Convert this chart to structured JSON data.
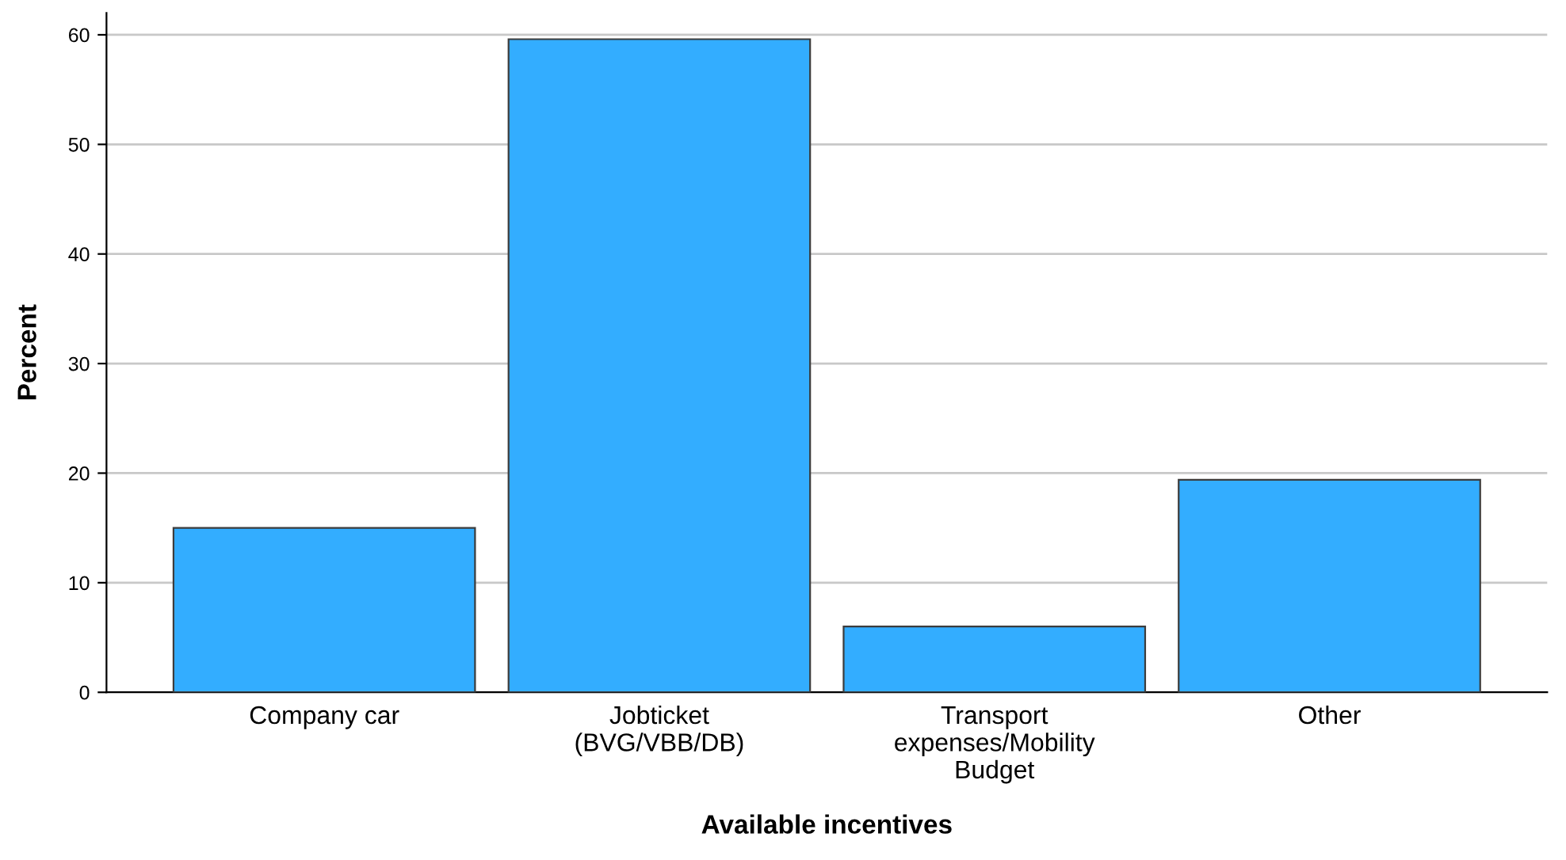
{
  "chart_data": {
    "type": "bar",
    "xlabel": "Available incentives",
    "ylabel": "Percent",
    "categories": [
      "Company car",
      "Jobticket\n(BVG/VBB/DB)",
      "Transport\nexpenses/Mobility\nBudget",
      "Other"
    ],
    "values": [
      15.0,
      59.6,
      6.0,
      19.4
    ],
    "color": "#33adff",
    "ylim": [
      0,
      62
    ],
    "yticks": [
      0,
      10,
      20,
      30,
      40,
      50,
      60
    ],
    "grid": "y",
    "legend": false
  }
}
